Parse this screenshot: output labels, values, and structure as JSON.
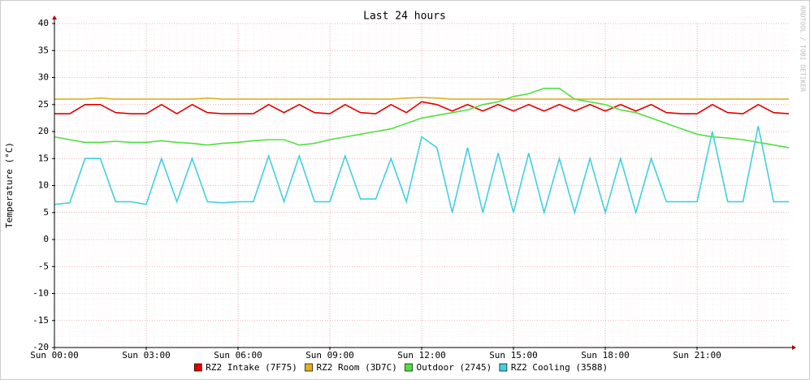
{
  "chart_data": {
    "type": "line",
    "title": "Last 24 hours",
    "y_label": "Temperature (°C)",
    "watermark": "RRDTOOL / TOBI OETIKER",
    "x": [
      0,
      0.5,
      1,
      1.5,
      2,
      2.5,
      3,
      3.5,
      4,
      4.5,
      5,
      5.5,
      6,
      6.5,
      7,
      7.5,
      8,
      8.5,
      9,
      9.5,
      10,
      10.5,
      11,
      11.5,
      12,
      12.5,
      13,
      13.5,
      14,
      14.5,
      15,
      15.5,
      16,
      16.5,
      17,
      17.5,
      18,
      18.5,
      19,
      19.5,
      20,
      20.5,
      21,
      21.5,
      22,
      22.5,
      23,
      23.5,
      24
    ],
    "xlim": [
      0,
      24
    ],
    "xticks": [
      {
        "value": 0,
        "label": "Sun 00:00"
      },
      {
        "value": 3,
        "label": "Sun 03:00"
      },
      {
        "value": 6,
        "label": "Sun 06:00"
      },
      {
        "value": 9,
        "label": "Sun 09:00"
      },
      {
        "value": 12,
        "label": "Sun 12:00"
      },
      {
        "value": 15,
        "label": "Sun 15:00"
      },
      {
        "value": 18,
        "label": "Sun 18:00"
      },
      {
        "value": 21,
        "label": "Sun 21:00"
      }
    ],
    "ylim": [
      -20,
      40
    ],
    "yticks": [
      -20,
      -15,
      -10,
      -5,
      0,
      5,
      10,
      15,
      20,
      25,
      30,
      35,
      40
    ],
    "grid": true,
    "legend": "bottom",
    "series": [
      {
        "name": "RZ2 Intake (7F75)",
        "color": "#e00000",
        "values": [
          23.3,
          23.3,
          25,
          25,
          23.5,
          23.3,
          23.3,
          25,
          23.3,
          25,
          23.5,
          23.3,
          23.3,
          23.3,
          25,
          23.5,
          25,
          23.5,
          23.3,
          25,
          23.5,
          23.3,
          25,
          23.5,
          25.5,
          25,
          23.8,
          25,
          23.8,
          25,
          23.8,
          25,
          23.8,
          25,
          23.8,
          25,
          23.8,
          25,
          23.8,
          25,
          23.5,
          23.3,
          23.3,
          25,
          23.5,
          23.3,
          25,
          23.5,
          23.3
        ]
      },
      {
        "name": "RZ2 Room (3D7C)",
        "color": "#e0b020",
        "values": [
          26,
          26,
          26,
          26.2,
          26,
          26,
          26,
          26,
          26,
          26,
          26.2,
          26,
          26,
          26,
          26,
          26,
          26,
          26,
          26,
          26,
          26,
          26,
          26,
          26.2,
          26.3,
          26.2,
          26,
          26,
          26,
          26,
          26,
          26,
          26,
          26,
          26,
          26,
          26,
          26,
          26,
          26,
          26,
          26,
          26,
          26,
          26,
          26,
          26,
          26,
          26
        ]
      },
      {
        "name": "Outdoor (2745)",
        "color": "#50e040",
        "values": [
          19,
          18.5,
          18,
          18,
          18.2,
          18,
          18,
          18.3,
          18,
          17.8,
          17.5,
          17.8,
          18,
          18.3,
          18.5,
          18.5,
          17.5,
          17.8,
          18.5,
          19,
          19.5,
          20,
          20.5,
          21.5,
          22.5,
          23,
          23.5,
          24,
          25,
          25.5,
          26.5,
          27,
          28,
          28,
          26,
          25.5,
          25,
          24,
          23.5,
          22.5,
          21.5,
          20.5,
          19.5,
          19,
          18.8,
          18.5,
          18,
          17.5,
          17
        ]
      },
      {
        "name": "RZ2 Cooling (3588)",
        "color": "#40d0e0",
        "values": [
          6.5,
          6.8,
          15,
          15,
          7,
          7,
          6.5,
          15,
          7,
          15,
          7,
          6.8,
          7,
          7,
          15.5,
          7,
          15.5,
          7,
          7,
          15.5,
          7.5,
          7.5,
          15,
          7,
          19,
          17,
          5,
          17,
          5,
          16,
          5,
          16,
          5,
          15,
          5,
          15,
          5,
          15,
          5,
          15,
          7,
          7,
          7,
          20,
          7,
          7,
          21,
          7,
          7
        ]
      }
    ]
  }
}
